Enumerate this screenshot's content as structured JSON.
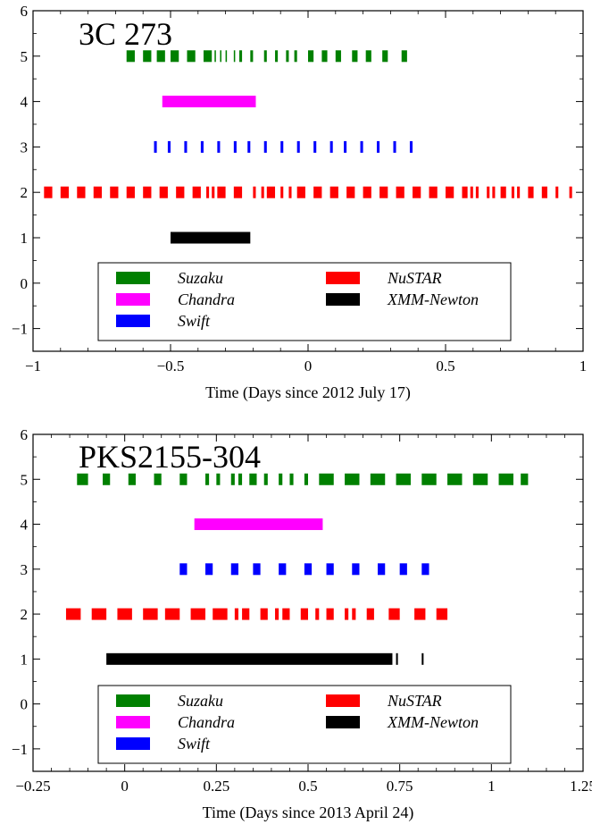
{
  "chart_data": [
    {
      "type": "timeline",
      "title": "3C 273",
      "xlabel": "Time (Days since 2012 July 17)",
      "ylabel": "",
      "xlim": [
        -1.0,
        1.0
      ],
      "ylim": [
        -1.5,
        6.0
      ],
      "xticks": [
        -1,
        -0.5,
        0,
        0.5,
        1
      ],
      "xtick_labels": [
        "−1",
        "−0.5",
        "0",
        "0.5",
        "1"
      ],
      "yticks": [
        -1,
        0,
        1,
        2,
        3,
        4,
        5,
        6
      ],
      "ytick_labels": [
        "−1",
        "0",
        "1",
        "2",
        "3",
        "4",
        "5",
        "6"
      ],
      "grid": false,
      "legend_position": "bottom-center",
      "series": [
        {
          "name": "Suzaku",
          "color": "#008000",
          "y": 5,
          "segments": [
            [
              -0.66,
              -0.63
            ],
            [
              -0.6,
              -0.57
            ],
            [
              -0.55,
              -0.52
            ],
            [
              -0.5,
              -0.47
            ],
            [
              -0.44,
              -0.41
            ],
            [
              -0.38,
              -0.35
            ],
            [
              -0.34,
              -0.335
            ],
            [
              -0.32,
              -0.315
            ],
            [
              -0.3,
              -0.295
            ],
            [
              -0.27,
              -0.265
            ],
            [
              -0.25,
              -0.24
            ],
            [
              -0.21,
              -0.2
            ],
            [
              -0.16,
              -0.15
            ],
            [
              -0.12,
              -0.11
            ],
            [
              -0.08,
              -0.07
            ],
            [
              -0.05,
              -0.04
            ],
            [
              0.0,
              0.02
            ],
            [
              0.05,
              0.07
            ],
            [
              0.1,
              0.12
            ],
            [
              0.16,
              0.18
            ],
            [
              0.21,
              0.23
            ],
            [
              0.27,
              0.29
            ],
            [
              0.34,
              0.36
            ]
          ]
        },
        {
          "name": "Chandra",
          "color": "#ff00ff",
          "y": 4,
          "segments": [
            [
              -0.53,
              -0.19
            ]
          ]
        },
        {
          "name": "Swift",
          "color": "#0000ff",
          "y": 3,
          "segments": [
            [
              -0.56,
              -0.55
            ],
            [
              -0.51,
              -0.5
            ],
            [
              -0.45,
              -0.44
            ],
            [
              -0.39,
              -0.38
            ],
            [
              -0.33,
              -0.32
            ],
            [
              -0.27,
              -0.26
            ],
            [
              -0.22,
              -0.21
            ],
            [
              -0.16,
              -0.15
            ],
            [
              -0.1,
              -0.09
            ],
            [
              -0.04,
              -0.03
            ],
            [
              0.02,
              0.03
            ],
            [
              0.08,
              0.09
            ],
            [
              0.13,
              0.14
            ],
            [
              0.19,
              0.2
            ],
            [
              0.25,
              0.26
            ],
            [
              0.31,
              0.32
            ],
            [
              0.37,
              0.38
            ]
          ]
        },
        {
          "name": "NuSTAR",
          "color": "#ff0000",
          "y": 2,
          "segments": [
            [
              -0.96,
              -0.93
            ],
            [
              -0.9,
              -0.87
            ],
            [
              -0.84,
              -0.81
            ],
            [
              -0.78,
              -0.75
            ],
            [
              -0.72,
              -0.69
            ],
            [
              -0.66,
              -0.63
            ],
            [
              -0.6,
              -0.57
            ],
            [
              -0.54,
              -0.51
            ],
            [
              -0.48,
              -0.45
            ],
            [
              -0.42,
              -0.39
            ],
            [
              -0.37,
              -0.36
            ],
            [
              -0.35,
              -0.34
            ],
            [
              -0.33,
              -0.3
            ],
            [
              -0.27,
              -0.24
            ],
            [
              -0.2,
              -0.19
            ],
            [
              -0.17,
              -0.16
            ],
            [
              -0.15,
              -0.12
            ],
            [
              -0.1,
              -0.09
            ],
            [
              -0.07,
              -0.06
            ],
            [
              -0.04,
              -0.01
            ],
            [
              0.02,
              0.05
            ],
            [
              0.08,
              0.11
            ],
            [
              0.14,
              0.17
            ],
            [
              0.2,
              0.23
            ],
            [
              0.26,
              0.29
            ],
            [
              0.32,
              0.35
            ],
            [
              0.38,
              0.41
            ],
            [
              0.44,
              0.47
            ],
            [
              0.5,
              0.53
            ],
            [
              0.56,
              0.58
            ],
            [
              0.59,
              0.6
            ],
            [
              0.61,
              0.62
            ],
            [
              0.65,
              0.66
            ],
            [
              0.67,
              0.68
            ],
            [
              0.7,
              0.72
            ],
            [
              0.74,
              0.75
            ],
            [
              0.76,
              0.77
            ],
            [
              0.8,
              0.82
            ],
            [
              0.85,
              0.87
            ],
            [
              0.9,
              0.91
            ],
            [
              0.95,
              0.96
            ]
          ]
        },
        {
          "name": "XMM-Newton",
          "color": "#000000",
          "y": 1,
          "segments": [
            [
              -0.5,
              -0.21
            ]
          ]
        }
      ]
    },
    {
      "type": "timeline",
      "title": "PKS2155-304",
      "xlabel": "Time (Days since 2013 April 24)",
      "ylabel": "",
      "xlim": [
        -0.25,
        1.25
      ],
      "ylim": [
        -1.5,
        6.0
      ],
      "xticks": [
        -0.25,
        0,
        0.25,
        0.5,
        0.75,
        1,
        1.25
      ],
      "xtick_labels": [
        "−0.25",
        "0",
        "0.25",
        "0.5",
        "0.75",
        "1",
        "1.25"
      ],
      "yticks": [
        -1,
        0,
        1,
        2,
        3,
        4,
        5,
        6
      ],
      "ytick_labels": [
        "−1",
        "0",
        "1",
        "2",
        "3",
        "4",
        "5",
        "6"
      ],
      "grid": false,
      "legend_position": "bottom-center",
      "series": [
        {
          "name": "Suzaku",
          "color": "#008000",
          "y": 5,
          "segments": [
            [
              -0.13,
              -0.1
            ],
            [
              -0.06,
              -0.04
            ],
            [
              0.01,
              0.03
            ],
            [
              0.08,
              0.1
            ],
            [
              0.15,
              0.17
            ],
            [
              0.22,
              0.23
            ],
            [
              0.25,
              0.26
            ],
            [
              0.29,
              0.3
            ],
            [
              0.31,
              0.32
            ],
            [
              0.34,
              0.36
            ],
            [
              0.38,
              0.39
            ],
            [
              0.42,
              0.43
            ],
            [
              0.45,
              0.46
            ],
            [
              0.49,
              0.5
            ],
            [
              0.53,
              0.57
            ],
            [
              0.6,
              0.64
            ],
            [
              0.67,
              0.71
            ],
            [
              0.74,
              0.78
            ],
            [
              0.81,
              0.85
            ],
            [
              0.88,
              0.92
            ],
            [
              0.95,
              0.99
            ],
            [
              1.02,
              1.06
            ],
            [
              1.08,
              1.1
            ]
          ]
        },
        {
          "name": "Chandra",
          "color": "#ff00ff",
          "y": 4,
          "segments": [
            [
              0.19,
              0.54
            ]
          ]
        },
        {
          "name": "Swift",
          "color": "#0000ff",
          "y": 3,
          "segments": [
            [
              0.15,
              0.17
            ],
            [
              0.22,
              0.24
            ],
            [
              0.29,
              0.31
            ],
            [
              0.35,
              0.37
            ],
            [
              0.42,
              0.44
            ],
            [
              0.49,
              0.51
            ],
            [
              0.55,
              0.57
            ],
            [
              0.62,
              0.64
            ],
            [
              0.69,
              0.71
            ],
            [
              0.75,
              0.77
            ],
            [
              0.81,
              0.83
            ]
          ]
        },
        {
          "name": "NuSTAR",
          "color": "#ff0000",
          "y": 2,
          "segments": [
            [
              -0.16,
              -0.12
            ],
            [
              -0.09,
              -0.05
            ],
            [
              -0.02,
              0.02
            ],
            [
              0.05,
              0.09
            ],
            [
              0.11,
              0.15
            ],
            [
              0.18,
              0.22
            ],
            [
              0.24,
              0.28
            ],
            [
              0.3,
              0.31
            ],
            [
              0.32,
              0.34
            ],
            [
              0.37,
              0.39
            ],
            [
              0.41,
              0.42
            ],
            [
              0.43,
              0.45
            ],
            [
              0.48,
              0.5
            ],
            [
              0.52,
              0.53
            ],
            [
              0.55,
              0.57
            ],
            [
              0.6,
              0.61
            ],
            [
              0.62,
              0.63
            ],
            [
              0.66,
              0.68
            ],
            [
              0.72,
              0.75
            ],
            [
              0.79,
              0.82
            ],
            [
              0.85,
              0.88
            ]
          ]
        },
        {
          "name": "XMM-Newton",
          "color": "#000000",
          "y": 1,
          "segments": [
            [
              -0.05,
              0.73
            ],
            [
              0.74,
              0.745
            ],
            [
              0.81,
              0.815
            ]
          ]
        }
      ]
    }
  ]
}
